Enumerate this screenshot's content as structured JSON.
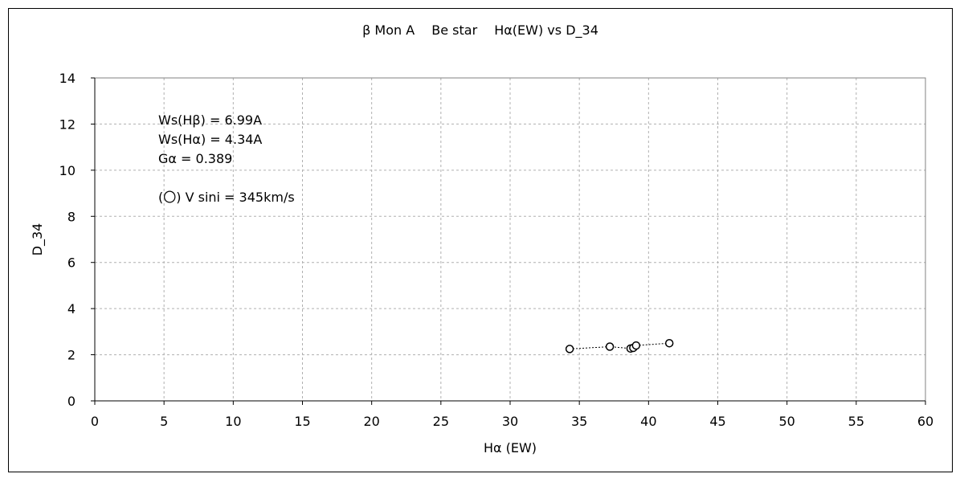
{
  "chart_data": {
    "type": "scatter",
    "title": "β  Mon A　 Be star　 Hα(EW)  vs  D_34",
    "xlabel": "Hα (EW)",
    "ylabel": "D_34",
    "xlim": [
      0,
      60
    ],
    "ylim": [
      0,
      14
    ],
    "xticks": [
      0,
      5,
      10,
      15,
      20,
      25,
      30,
      35,
      40,
      45,
      50,
      55,
      60
    ],
    "yticks": [
      0,
      2,
      4,
      6,
      8,
      10,
      12,
      14
    ],
    "grid": true,
    "series": [
      {
        "marker": "open-circle",
        "line": "dotted",
        "color": "#000000",
        "points": [
          {
            "x": 34.3,
            "y": 2.25
          },
          {
            "x": 37.2,
            "y": 2.35
          },
          {
            "x": 38.7,
            "y": 2.27
          },
          {
            "x": 38.9,
            "y": 2.3
          },
          {
            "x": 39.1,
            "y": 2.4
          },
          {
            "x": 41.5,
            "y": 2.5
          }
        ]
      }
    ],
    "annotations": [
      "Ws(Hβ) = 6.99A",
      "Ws(Hα) = 4.34A",
      "Gα = 0.389",
      "(〇) V sini = 345km/s"
    ]
  }
}
